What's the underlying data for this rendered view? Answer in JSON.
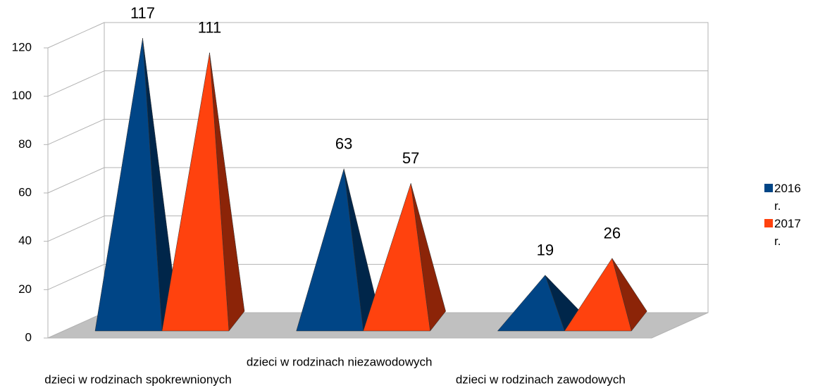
{
  "chart_data": {
    "type": "pyramid3d",
    "categories": [
      "dzieci w rodzinach spokrewnionych",
      "dzieci w rodzinach niezawodowych",
      "dzieci w rodzinach zawodowych"
    ],
    "series": [
      {
        "name": "2016 r.",
        "color": "#004586",
        "values": [
          117,
          63,
          19
        ]
      },
      {
        "name": "2017 r.",
        "color": "#ff420e",
        "values": [
          111,
          57,
          26
        ]
      }
    ],
    "ylim": [
      0,
      120
    ],
    "yticks": [
      0,
      20,
      40,
      60,
      80,
      100,
      120
    ],
    "grid": true,
    "legend": "right"
  }
}
